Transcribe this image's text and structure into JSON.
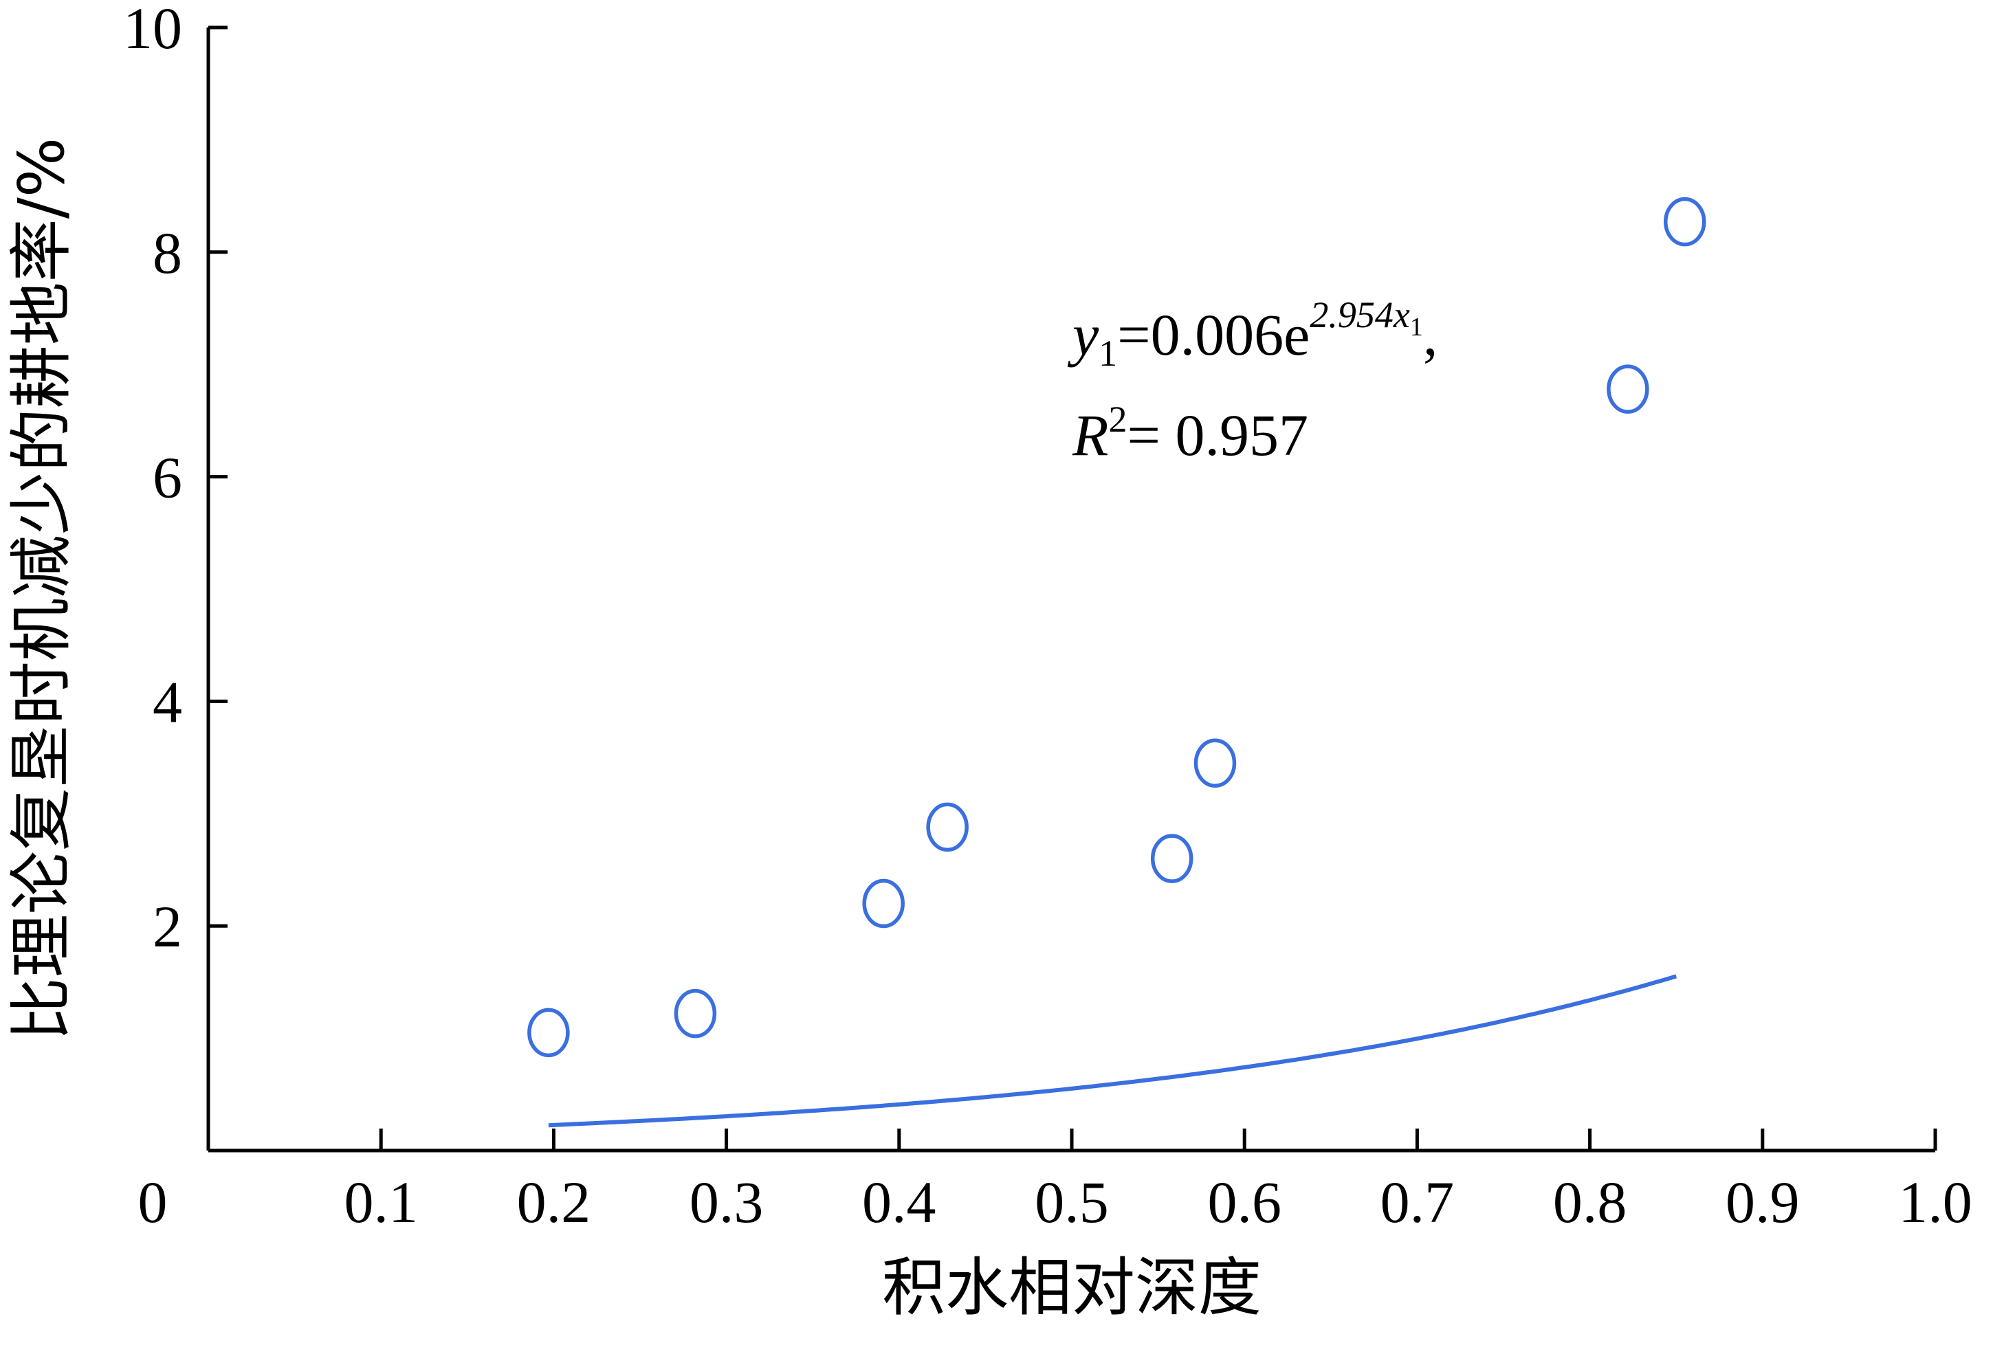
{
  "chart_data": {
    "type": "scatter",
    "xlabel": "积水相对深度",
    "ylabel": "比理论复垦时机减少的耕地率/%",
    "xlim": [
      0,
      1.0
    ],
    "ylim": [
      0,
      10
    ],
    "x_ticks": [
      "0",
      "0.1",
      "0.2",
      "0.3",
      "0.4",
      "0.5",
      "0.6",
      "0.7",
      "0.8",
      "0.9",
      "1.0"
    ],
    "y_ticks": [
      "2",
      "4",
      "6",
      "8",
      "10"
    ],
    "grid": false,
    "colors": {
      "series": "#3a6fe0",
      "axis": "#000000"
    },
    "series": [
      {
        "points": [
          {
            "x": 0.197,
            "y": 1.05
          },
          {
            "x": 0.282,
            "y": 1.22
          },
          {
            "x": 0.391,
            "y": 2.2
          },
          {
            "x": 0.428,
            "y": 2.88
          },
          {
            "x": 0.558,
            "y": 2.6
          },
          {
            "x": 0.583,
            "y": 3.45
          },
          {
            "x": 0.822,
            "y": 6.78
          },
          {
            "x": 0.855,
            "y": 8.27
          }
        ]
      }
    ],
    "fit": {
      "type": "exponential",
      "a": 0.006,
      "b": 2.954,
      "x_range": [
        0.197,
        0.85
      ],
      "r2": 0.957
    },
    "annotation": {
      "eq_y": "y",
      "eq_y_sub": "1",
      "eq_mid": "=0.006e",
      "eq_exp": "2.954",
      "eq_exp_x": "x",
      "eq_exp_x_sub": "1",
      "eq_tail": ",",
      "r_label": "R",
      "r_sup": "2",
      "r_value": "= 0.957"
    }
  }
}
